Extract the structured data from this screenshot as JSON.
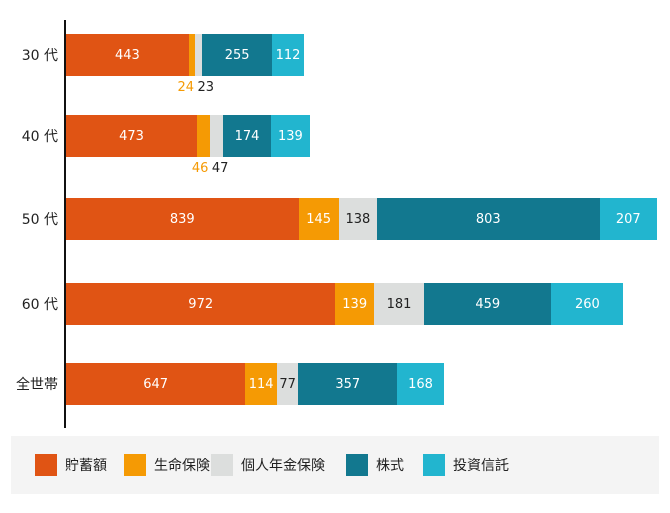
{
  "chart_data": {
    "type": "bar",
    "orientation": "horizontal",
    "stacked": true,
    "title": "",
    "xlabel": "",
    "ylabel": "",
    "categories": [
      "30 代",
      "40 代",
      "50 代",
      "60 代",
      "全世帯"
    ],
    "series": [
      {
        "name": "貯蓄額",
        "color": "#e05414",
        "values": [
          443,
          473,
          839,
          972,
          647
        ]
      },
      {
        "name": "生命保険",
        "color": "#f59a04",
        "values": [
          24,
          46,
          145,
          139,
          114
        ]
      },
      {
        "name": "個人年金保険",
        "color": "#dcdedd",
        "values": [
          23,
          47,
          138,
          181,
          77
        ]
      },
      {
        "name": "株式",
        "color": "#12788f",
        "values": [
          255,
          174,
          803,
          459,
          357
        ]
      },
      {
        "name": "投資信託",
        "color": "#22b5cf",
        "values": [
          112,
          139,
          207,
          260,
          168
        ]
      }
    ],
    "grid": false,
    "legend_position": "bottom",
    "data_labels": true
  },
  "rows": [
    {
      "label": "30 代",
      "segments": [
        "443",
        "",
        "",
        "255",
        "112"
      ],
      "below": [
        {
          "text": "24",
          "color": "#f59a04"
        },
        {
          "text": "23",
          "color": "#222222"
        }
      ]
    },
    {
      "label": "40 代",
      "segments": [
        "473",
        "",
        "",
        "174",
        "139"
      ],
      "below": [
        {
          "text": "46",
          "color": "#f59a04"
        },
        {
          "text": "47",
          "color": "#222222"
        }
      ]
    },
    {
      "label": "50 代",
      "segments": [
        "839",
        "145",
        "138",
        "803",
        "207"
      ]
    },
    {
      "label": "60 代",
      "segments": [
        "972",
        "139",
        "181",
        "459",
        "260"
      ]
    },
    {
      "label": "全世帯",
      "segments": [
        "647",
        "114",
        "77",
        "357",
        "168"
      ]
    }
  ],
  "legend": [
    {
      "label": "貯蓄額",
      "color": "#e05414"
    },
    {
      "label": "生命保険",
      "color": "#f59a04"
    },
    {
      "label": "個人年金保険",
      "color": "#dcdedd"
    },
    {
      "label": "株式",
      "color": "#12788f"
    },
    {
      "label": "投資信託",
      "color": "#22b5cf"
    }
  ]
}
